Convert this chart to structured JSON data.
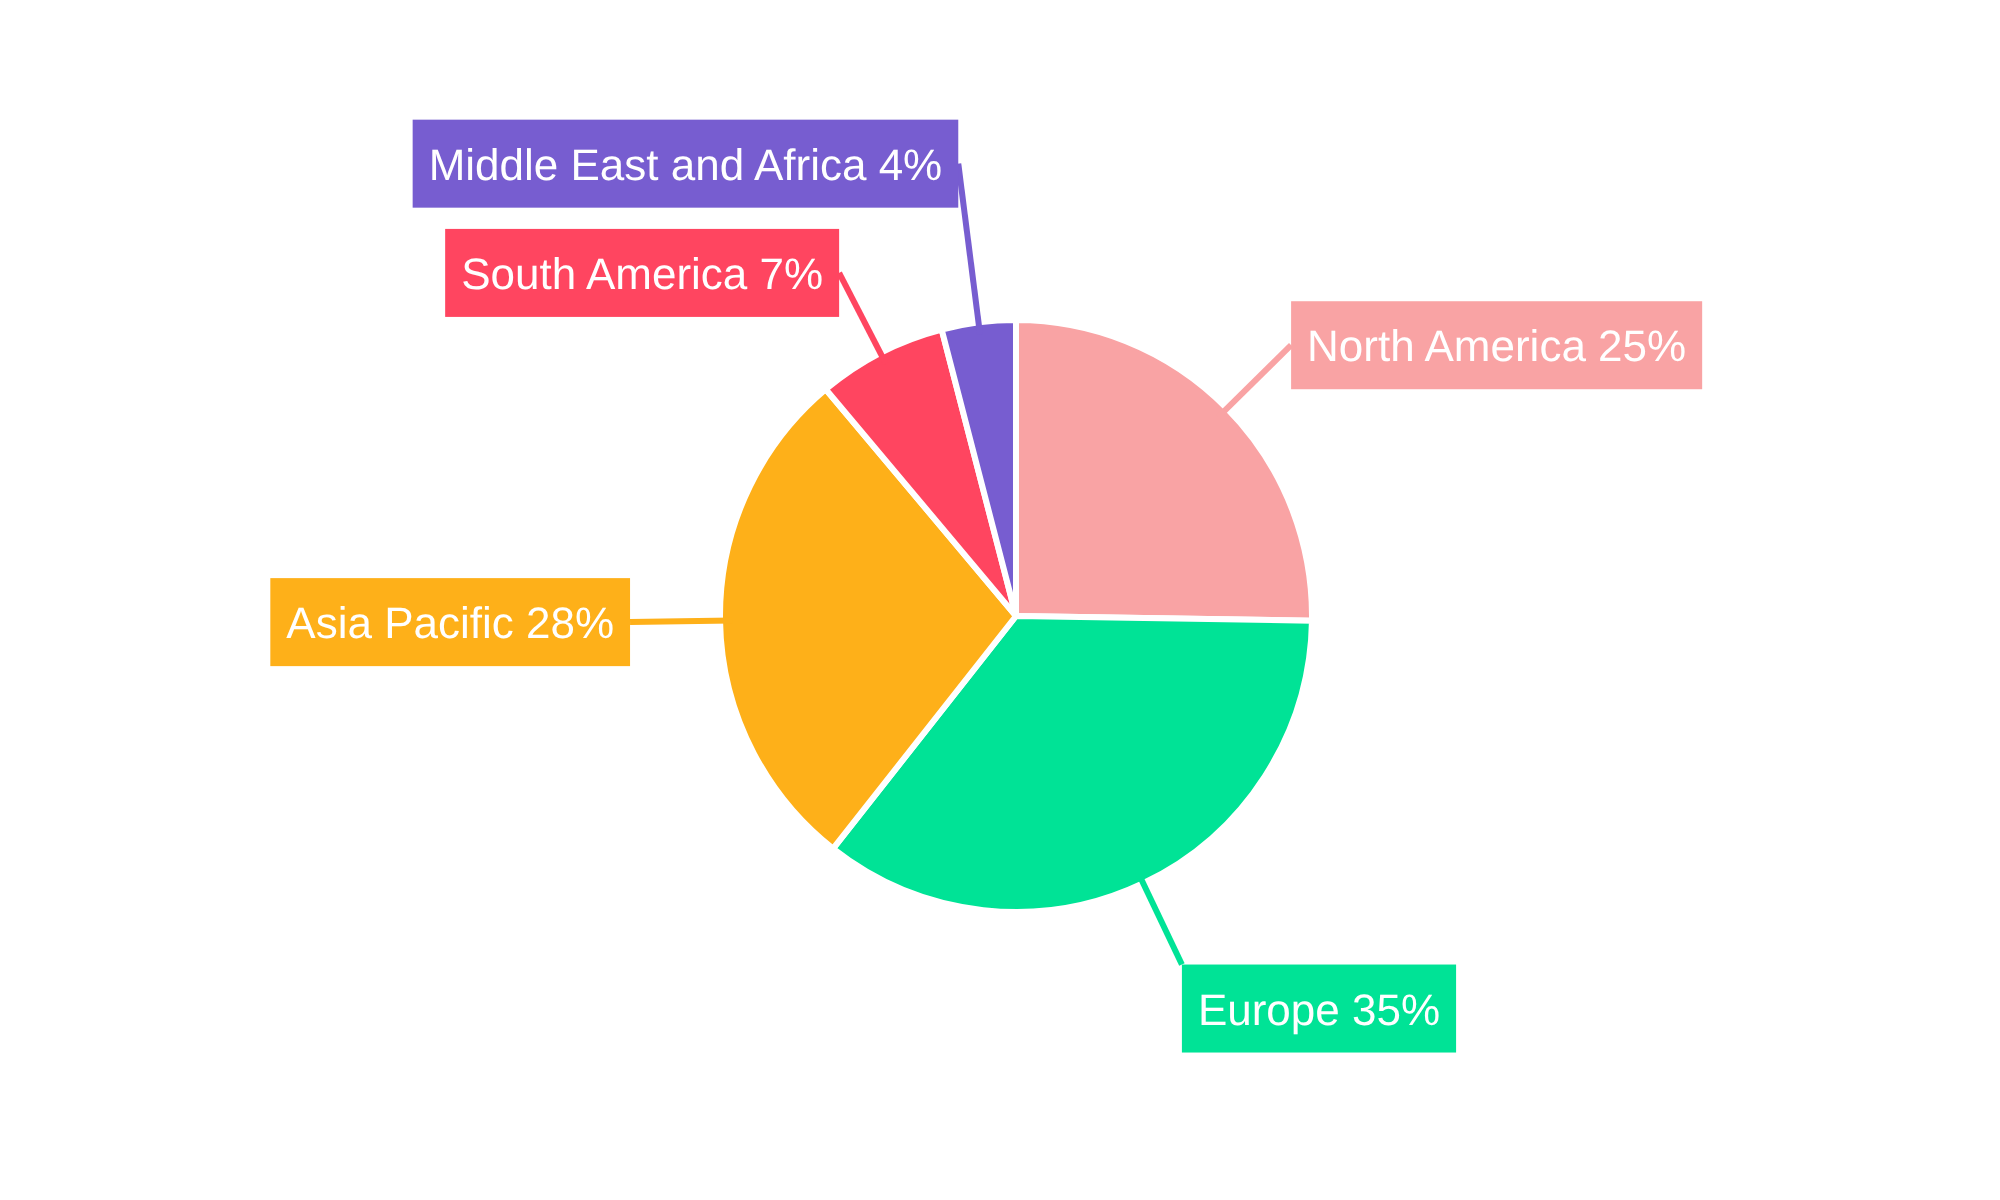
{
  "chart_data": {
    "type": "pie",
    "categories": [
      "North America",
      "Europe",
      "Asia Pacific",
      "South America",
      "Middle East and Africa"
    ],
    "values": [
      25,
      35,
      28,
      7,
      4
    ],
    "value_labels": [
      "25%",
      "35%",
      "28%",
      "7%",
      "4%"
    ],
    "colors": [
      "#f9a3a4",
      "#00e396",
      "#feb019",
      "#ff4560",
      "#775dd0"
    ],
    "legend": false
  }
}
